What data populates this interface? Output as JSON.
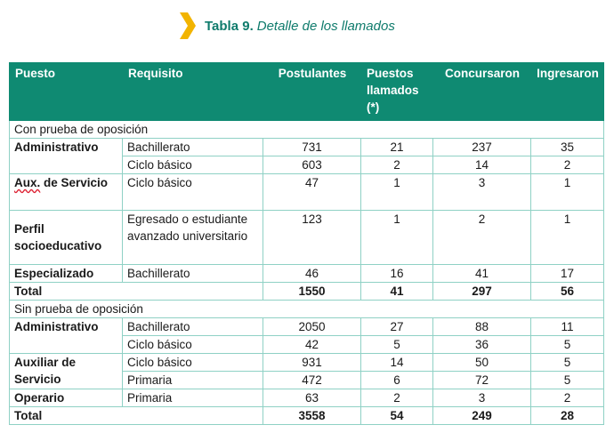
{
  "title": {
    "bold": "Tabla 9.",
    "rest": "Detalle de los llamados"
  },
  "accent_color": "#0f8a72",
  "chevron_color": "#f2b400",
  "headers": [
    "Puesto",
    "Requisito",
    "Postulantes",
    "Puestos llamados (*)",
    "Concursaron",
    "Ingresaron"
  ],
  "sections": {
    "con": "Con prueba de oposición",
    "sin": "Sin prueba de oposición"
  },
  "con_rows": {
    "r1": {
      "puesto": "Administrativo",
      "requisito": "Bachillerato",
      "postulantes": "731",
      "llamados": "21",
      "concursaron": "237",
      "ingresaron": "35"
    },
    "r2": {
      "requisito": "Ciclo básico",
      "postulantes": "603",
      "llamados": "2",
      "concursaron": "14",
      "ingresaron": "2"
    },
    "r3": {
      "puesto_a": "Aux.",
      "puesto_b": " de Servicio",
      "requisito": "Ciclo básico",
      "postulantes": "47",
      "llamados": "1",
      "concursaron": "3",
      "ingresaron": "1"
    },
    "r4": {
      "puesto": "Perfil socioeducativo",
      "requisito": "Egresado o estudiante avanzado universitario",
      "postulantes": "123",
      "llamados": "1",
      "concursaron": "2",
      "ingresaron": "1"
    },
    "r5": {
      "puesto": "Especializado",
      "requisito": "Bachillerato",
      "postulantes": "46",
      "llamados": "16",
      "concursaron": "41",
      "ingresaron": "17"
    },
    "total": {
      "label": "Total",
      "postulantes": "1550",
      "llamados": "41",
      "concursaron": "297",
      "ingresaron": "56"
    }
  },
  "sin_rows": {
    "r1": {
      "puesto": "Administrativo",
      "requisito": "Bachillerato",
      "postulantes": "2050",
      "llamados": "27",
      "concursaron": "88",
      "ingresaron": "11"
    },
    "r2": {
      "requisito": "Ciclo básico",
      "postulantes": "42",
      "llamados": "5",
      "concursaron": "36",
      "ingresaron": "5"
    },
    "r3": {
      "puesto": "Auxiliar de Servicio",
      "requisito": "Ciclo básico",
      "postulantes": "931",
      "llamados": "14",
      "concursaron": "50",
      "ingresaron": "5"
    },
    "r4": {
      "requisito": "Primaria",
      "postulantes": "472",
      "llamados": "6",
      "concursaron": "72",
      "ingresaron": "5"
    },
    "r5": {
      "puesto": "Operario",
      "requisito": "Primaria",
      "postulantes": "63",
      "llamados": "2",
      "concursaron": "3",
      "ingresaron": "2"
    },
    "total": {
      "label": "Total",
      "postulantes": "3558",
      "llamados": "54",
      "concursaron": "249",
      "ingresaron": "28"
    }
  }
}
